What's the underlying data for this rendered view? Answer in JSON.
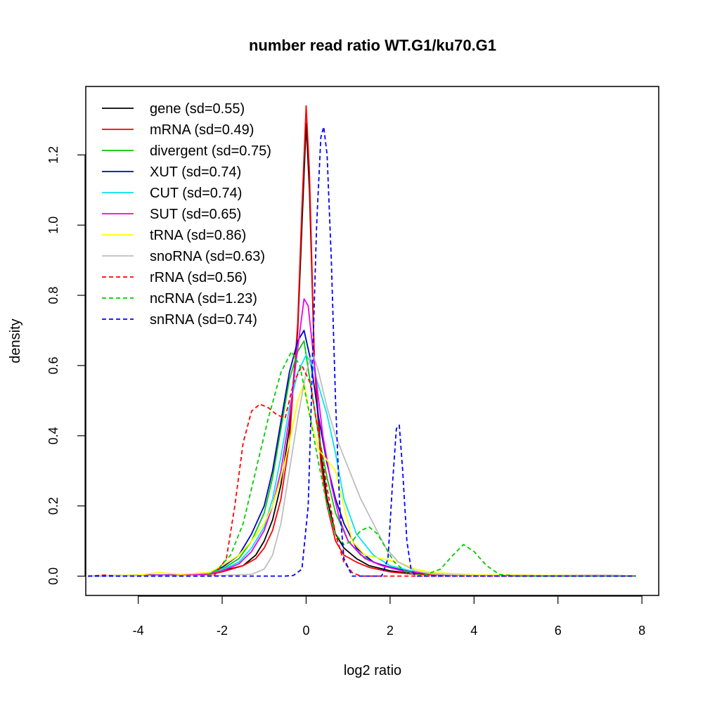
{
  "chart_data": {
    "type": "line",
    "title": "number read ratio WT.G1/ku70.G1",
    "xlabel": "log2 ratio",
    "ylabel": "density",
    "xlim": [
      -5.25,
      8.4
    ],
    "ylim": [
      -0.055,
      1.395
    ],
    "x_ticks": [
      -4,
      -2,
      0,
      2,
      4,
      6,
      8
    ],
    "x_tick_labels": [
      "-4",
      "-2",
      "0",
      "2",
      "4",
      "6",
      "8"
    ],
    "y_ticks": [
      0.0,
      0.2,
      0.4,
      0.6,
      0.8,
      1.0,
      1.2
    ],
    "y_tick_labels": [
      "0.0",
      "0.2",
      "0.4",
      "0.6",
      "0.8",
      "1.0",
      "1.2"
    ],
    "grid": false,
    "legend_position": "top-left",
    "series": [
      {
        "name": "gene (sd=0.55)",
        "color": "#000000",
        "dash": false,
        "points": [
          [
            -5.2,
            0
          ],
          [
            -4,
            0.003
          ],
          [
            -3,
            0.003
          ],
          [
            -2.3,
            0.005
          ],
          [
            -2,
            0.015
          ],
          [
            -1.5,
            0.03
          ],
          [
            -1.2,
            0.06
          ],
          [
            -1,
            0.1
          ],
          [
            -0.8,
            0.16
          ],
          [
            -0.6,
            0.26
          ],
          [
            -0.4,
            0.42
          ],
          [
            -0.2,
            0.7
          ],
          [
            -0.1,
            1.0
          ],
          [
            0,
            1.29
          ],
          [
            0.08,
            1.1
          ],
          [
            0.2,
            0.6
          ],
          [
            0.35,
            0.35
          ],
          [
            0.5,
            0.22
          ],
          [
            0.7,
            0.12
          ],
          [
            0.9,
            0.08
          ],
          [
            1.2,
            0.05
          ],
          [
            1.5,
            0.03
          ],
          [
            2,
            0.015
          ],
          [
            2.5,
            0.008
          ],
          [
            3,
            0.004
          ],
          [
            4,
            0.003
          ],
          [
            6,
            0.002
          ],
          [
            7.85,
            0.001
          ]
        ]
      },
      {
        "name": "mRNA (sd=0.49)",
        "color": "#ff0000",
        "dash": false,
        "points": [
          [
            -5.2,
            0
          ],
          [
            -4,
            0.002
          ],
          [
            -3,
            0.003
          ],
          [
            -2.3,
            0.005
          ],
          [
            -2,
            0.012
          ],
          [
            -1.5,
            0.03
          ],
          [
            -1.2,
            0.05
          ],
          [
            -1,
            0.08
          ],
          [
            -0.8,
            0.13
          ],
          [
            -0.6,
            0.22
          ],
          [
            -0.4,
            0.38
          ],
          [
            -0.2,
            0.72
          ],
          [
            -0.1,
            1.05
          ],
          [
            0,
            1.34
          ],
          [
            0.08,
            1.15
          ],
          [
            0.2,
            0.6
          ],
          [
            0.35,
            0.32
          ],
          [
            0.5,
            0.2
          ],
          [
            0.7,
            0.1
          ],
          [
            0.9,
            0.06
          ],
          [
            1.2,
            0.04
          ],
          [
            1.5,
            0.025
          ],
          [
            2,
            0.012
          ],
          [
            2.5,
            0.006
          ],
          [
            3,
            0.004
          ],
          [
            4,
            0.003
          ],
          [
            6,
            0.002
          ],
          [
            7.85,
            0.001
          ]
        ]
      },
      {
        "name": "divergent (sd=0.75)",
        "color": "#00cc00",
        "dash": false,
        "points": [
          [
            -5.2,
            0
          ],
          [
            -4,
            0.002
          ],
          [
            -3,
            0.004
          ],
          [
            -2.3,
            0.008
          ],
          [
            -2,
            0.02
          ],
          [
            -1.6,
            0.05
          ],
          [
            -1.3,
            0.1
          ],
          [
            -1,
            0.18
          ],
          [
            -0.8,
            0.28
          ],
          [
            -0.6,
            0.42
          ],
          [
            -0.4,
            0.56
          ],
          [
            -0.2,
            0.64
          ],
          [
            -0.05,
            0.67
          ],
          [
            0.1,
            0.55
          ],
          [
            0.3,
            0.4
          ],
          [
            0.5,
            0.28
          ],
          [
            0.7,
            0.18
          ],
          [
            1,
            0.1
          ],
          [
            1.3,
            0.06
          ],
          [
            1.7,
            0.035
          ],
          [
            2.2,
            0.02
          ],
          [
            2.7,
            0.01
          ],
          [
            3.2,
            0.005
          ],
          [
            4,
            0.003
          ],
          [
            6,
            0.001
          ],
          [
            7.85,
            0.001
          ]
        ]
      },
      {
        "name": "XUT (sd=0.74)",
        "color": "#0000cc",
        "dash": false,
        "points": [
          [
            -5.2,
            0
          ],
          [
            -4,
            0.002
          ],
          [
            -3,
            0.004
          ],
          [
            -2.3,
            0.01
          ],
          [
            -2,
            0.025
          ],
          [
            -1.6,
            0.06
          ],
          [
            -1.3,
            0.12
          ],
          [
            -1,
            0.2
          ],
          [
            -0.8,
            0.3
          ],
          [
            -0.6,
            0.44
          ],
          [
            -0.4,
            0.58
          ],
          [
            -0.2,
            0.67
          ],
          [
            -0.05,
            0.7
          ],
          [
            0.1,
            0.62
          ],
          [
            0.3,
            0.45
          ],
          [
            0.5,
            0.32
          ],
          [
            0.7,
            0.22
          ],
          [
            0.9,
            0.15
          ],
          [
            1.2,
            0.08
          ],
          [
            1.6,
            0.04
          ],
          [
            2,
            0.025
          ],
          [
            2.5,
            0.012
          ],
          [
            3,
            0.006
          ],
          [
            4,
            0.003
          ],
          [
            6,
            0.002
          ],
          [
            7.85,
            0.001
          ]
        ]
      },
      {
        "name": "CUT (sd=0.74)",
        "color": "#00e5ee",
        "dash": false,
        "points": [
          [
            -5.2,
            0
          ],
          [
            -4,
            0.002
          ],
          [
            -3,
            0.003
          ],
          [
            -2.3,
            0.007
          ],
          [
            -2,
            0.018
          ],
          [
            -1.6,
            0.04
          ],
          [
            -1.3,
            0.08
          ],
          [
            -1,
            0.14
          ],
          [
            -0.8,
            0.22
          ],
          [
            -0.6,
            0.34
          ],
          [
            -0.4,
            0.48
          ],
          [
            -0.2,
            0.58
          ],
          [
            0,
            0.63
          ],
          [
            0.15,
            0.6
          ],
          [
            0.3,
            0.54
          ],
          [
            0.5,
            0.46
          ],
          [
            0.7,
            0.35
          ],
          [
            0.9,
            0.22
          ],
          [
            1.2,
            0.12
          ],
          [
            1.6,
            0.06
          ],
          [
            2,
            0.03
          ],
          [
            2.5,
            0.015
          ],
          [
            3,
            0.007
          ],
          [
            4,
            0.003
          ],
          [
            6,
            0.002
          ],
          [
            7.85,
            0.001
          ]
        ]
      },
      {
        "name": "SUT (sd=0.65)",
        "color": "#ee00ee",
        "dash": false,
        "points": [
          [
            -5.2,
            0
          ],
          [
            -4,
            0.002
          ],
          [
            -3,
            0.003
          ],
          [
            -2.3,
            0.006
          ],
          [
            -2,
            0.015
          ],
          [
            -1.6,
            0.035
          ],
          [
            -1.3,
            0.07
          ],
          [
            -1,
            0.13
          ],
          [
            -0.8,
            0.2
          ],
          [
            -0.6,
            0.3
          ],
          [
            -0.4,
            0.45
          ],
          [
            -0.2,
            0.65
          ],
          [
            -0.05,
            0.79
          ],
          [
            0.05,
            0.77
          ],
          [
            0.2,
            0.6
          ],
          [
            0.4,
            0.4
          ],
          [
            0.6,
            0.26
          ],
          [
            0.8,
            0.16
          ],
          [
            1,
            0.1
          ],
          [
            1.4,
            0.05
          ],
          [
            1.8,
            0.03
          ],
          [
            2.3,
            0.015
          ],
          [
            3,
            0.006
          ],
          [
            4,
            0.003
          ],
          [
            6,
            0.002
          ],
          [
            7.85,
            0.001
          ]
        ]
      },
      {
        "name": "tRNA (sd=0.86)",
        "color": "#ffff00",
        "dash": false,
        "points": [
          [
            -5.2,
            0
          ],
          [
            -4,
            0.003
          ],
          [
            -3.5,
            0.01
          ],
          [
            -3,
            0.005
          ],
          [
            -2.3,
            0.01
          ],
          [
            -2,
            0.03
          ],
          [
            -1.6,
            0.06
          ],
          [
            -1.3,
            0.1
          ],
          [
            -1,
            0.15
          ],
          [
            -0.8,
            0.2
          ],
          [
            -0.6,
            0.28
          ],
          [
            -0.4,
            0.38
          ],
          [
            -0.2,
            0.5
          ],
          [
            -0.05,
            0.55
          ],
          [
            0.1,
            0.45
          ],
          [
            0.3,
            0.36
          ],
          [
            0.5,
            0.33
          ],
          [
            0.7,
            0.3
          ],
          [
            0.9,
            0.2
          ],
          [
            1.1,
            0.1
          ],
          [
            1.4,
            0.06
          ],
          [
            1.8,
            0.05
          ],
          [
            2.2,
            0.04
          ],
          [
            2.6,
            0.02
          ],
          [
            3,
            0.01
          ],
          [
            4,
            0.004
          ],
          [
            6,
            0.002
          ],
          [
            7.85,
            0.001
          ]
        ]
      },
      {
        "name": "snoRNA (sd=0.63)",
        "color": "#bebebe",
        "dash": false,
        "points": [
          [
            -5.2,
            0
          ],
          [
            -4,
            0.001
          ],
          [
            -3,
            0.001
          ],
          [
            -2,
            0.002
          ],
          [
            -1.3,
            0.005
          ],
          [
            -1,
            0.02
          ],
          [
            -0.8,
            0.06
          ],
          [
            -0.6,
            0.15
          ],
          [
            -0.4,
            0.3
          ],
          [
            -0.2,
            0.45
          ],
          [
            0,
            0.58
          ],
          [
            0.15,
            0.64
          ],
          [
            0.3,
            0.58
          ],
          [
            0.5,
            0.48
          ],
          [
            0.7,
            0.4
          ],
          [
            0.9,
            0.34
          ],
          [
            1.1,
            0.28
          ],
          [
            1.3,
            0.22
          ],
          [
            1.6,
            0.15
          ],
          [
            1.9,
            0.08
          ],
          [
            2.2,
            0.04
          ],
          [
            2.6,
            0.015
          ],
          [
            3,
            0.006
          ],
          [
            4,
            0.002
          ],
          [
            6,
            0.001
          ],
          [
            7.85,
            0.001
          ]
        ]
      },
      {
        "name": "rRNA (sd=0.56)",
        "color": "#ff0000",
        "dash": true,
        "points": [
          [
            -5.2,
            0
          ],
          [
            -4.8,
            0.003
          ],
          [
            -4.5,
            0
          ],
          [
            -2.2,
            0
          ],
          [
            -1.9,
            0.05
          ],
          [
            -1.7,
            0.2
          ],
          [
            -1.5,
            0.38
          ],
          [
            -1.3,
            0.47
          ],
          [
            -1.1,
            0.49
          ],
          [
            -0.9,
            0.48
          ],
          [
            -0.7,
            0.46
          ],
          [
            -0.5,
            0.45
          ],
          [
            -0.3,
            0.55
          ],
          [
            -0.1,
            0.6
          ],
          [
            0.1,
            0.55
          ],
          [
            0.3,
            0.4
          ],
          [
            0.5,
            0.25
          ],
          [
            0.7,
            0.12
          ],
          [
            0.9,
            0.04
          ],
          [
            1.1,
            0.01
          ],
          [
            1.3,
            0
          ],
          [
            7.85,
            0
          ]
        ]
      },
      {
        "name": "ncRNA (sd=1.23)",
        "color": "#00cc00",
        "dash": true,
        "points": [
          [
            -5.2,
            0
          ],
          [
            -2.4,
            0
          ],
          [
            -2.1,
            0.02
          ],
          [
            -1.8,
            0.06
          ],
          [
            -1.5,
            0.15
          ],
          [
            -1.2,
            0.3
          ],
          [
            -0.9,
            0.45
          ],
          [
            -0.6,
            0.58
          ],
          [
            -0.35,
            0.64
          ],
          [
            -0.15,
            0.6
          ],
          [
            0.1,
            0.45
          ],
          [
            0.3,
            0.32
          ],
          [
            0.5,
            0.2
          ],
          [
            0.7,
            0.12
          ],
          [
            0.9,
            0.09
          ],
          [
            1.1,
            0.1
          ],
          [
            1.3,
            0.13
          ],
          [
            1.5,
            0.14
          ],
          [
            1.7,
            0.12
          ],
          [
            1.9,
            0.08
          ],
          [
            2.1,
            0.04
          ],
          [
            2.4,
            0.01
          ],
          [
            2.8,
            0.002
          ],
          [
            3.2,
            0.02
          ],
          [
            3.5,
            0.06
          ],
          [
            3.75,
            0.09
          ],
          [
            4,
            0.07
          ],
          [
            4.3,
            0.03
          ],
          [
            4.6,
            0.005
          ],
          [
            5,
            0
          ],
          [
            7.85,
            0
          ]
        ]
      },
      {
        "name": "snRNA (sd=0.74)",
        "color": "#0000ff",
        "dash": true,
        "points": [
          [
            -5.2,
            0
          ],
          [
            -0.5,
            0
          ],
          [
            -0.3,
            0.002
          ],
          [
            -0.1,
            0.02
          ],
          [
            0.05,
            0.2
          ],
          [
            0.15,
            0.6
          ],
          [
            0.25,
            1.0
          ],
          [
            0.35,
            1.25
          ],
          [
            0.42,
            1.28
          ],
          [
            0.5,
            1.2
          ],
          [
            0.6,
            0.9
          ],
          [
            0.7,
            0.5
          ],
          [
            0.8,
            0.2
          ],
          [
            0.9,
            0.05
          ],
          [
            1.1,
            0
          ],
          [
            1.8,
            0
          ],
          [
            1.95,
            0.05
          ],
          [
            2.05,
            0.25
          ],
          [
            2.15,
            0.42
          ],
          [
            2.22,
            0.43
          ],
          [
            2.3,
            0.3
          ],
          [
            2.4,
            0.1
          ],
          [
            2.5,
            0.02
          ],
          [
            2.6,
            0
          ],
          [
            7.85,
            0
          ]
        ]
      }
    ]
  }
}
